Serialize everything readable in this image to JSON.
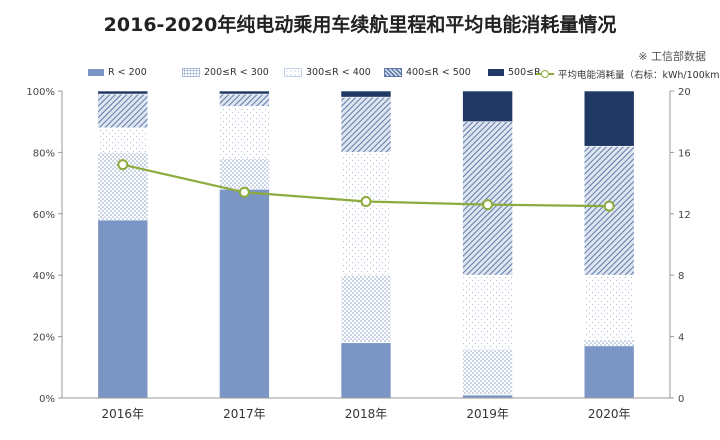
{
  "chart_data": {
    "type": "bar",
    "stacked": true,
    "title": "2016-2020年纯电动乘用车续航里程和平均电能消耗量情况",
    "source_note": "※ 工信部数据",
    "categories": [
      "2016年",
      "2017年",
      "2018年",
      "2019年",
      "2020年"
    ],
    "series": [
      {
        "name": "R < 200",
        "values": [
          58,
          68,
          18,
          1,
          17
        ],
        "color": "#7b96c4",
        "pattern": "solid"
      },
      {
        "name": "200≤R < 300",
        "values": [
          22,
          10,
          22,
          15,
          2
        ],
        "color": "#a9b9d6",
        "pattern": "dots"
      },
      {
        "name": "300≤R < 400",
        "values": [
          8,
          17,
          40,
          24,
          21
        ],
        "color": "#c5d1e6",
        "pattern": "sparse"
      },
      {
        "name": "400≤R < 500",
        "values": [
          11,
          4,
          18,
          50,
          42
        ],
        "color": "#5d7aaa",
        "pattern": "hatch"
      },
      {
        "name": "500≤R",
        "values": [
          1,
          1,
          2,
          10,
          18
        ],
        "color": "#1f3864",
        "pattern": "solid"
      }
    ],
    "line_series": {
      "name": "平均电能消耗量（右标：kWh/100km）",
      "values": [
        15.2,
        13.4,
        12.8,
        12.6,
        12.5
      ],
      "color": "#8cab3e"
    },
    "y_left": {
      "ticks": [
        "0%",
        "20%",
        "40%",
        "60%",
        "80%",
        "100%"
      ],
      "min": 0,
      "max": 100
    },
    "y_right": {
      "ticks": [
        "0",
        "4",
        "8",
        "12",
        "16",
        "20"
      ],
      "min": 0,
      "max": 20
    },
    "legend_position": "top",
    "grid": false
  }
}
